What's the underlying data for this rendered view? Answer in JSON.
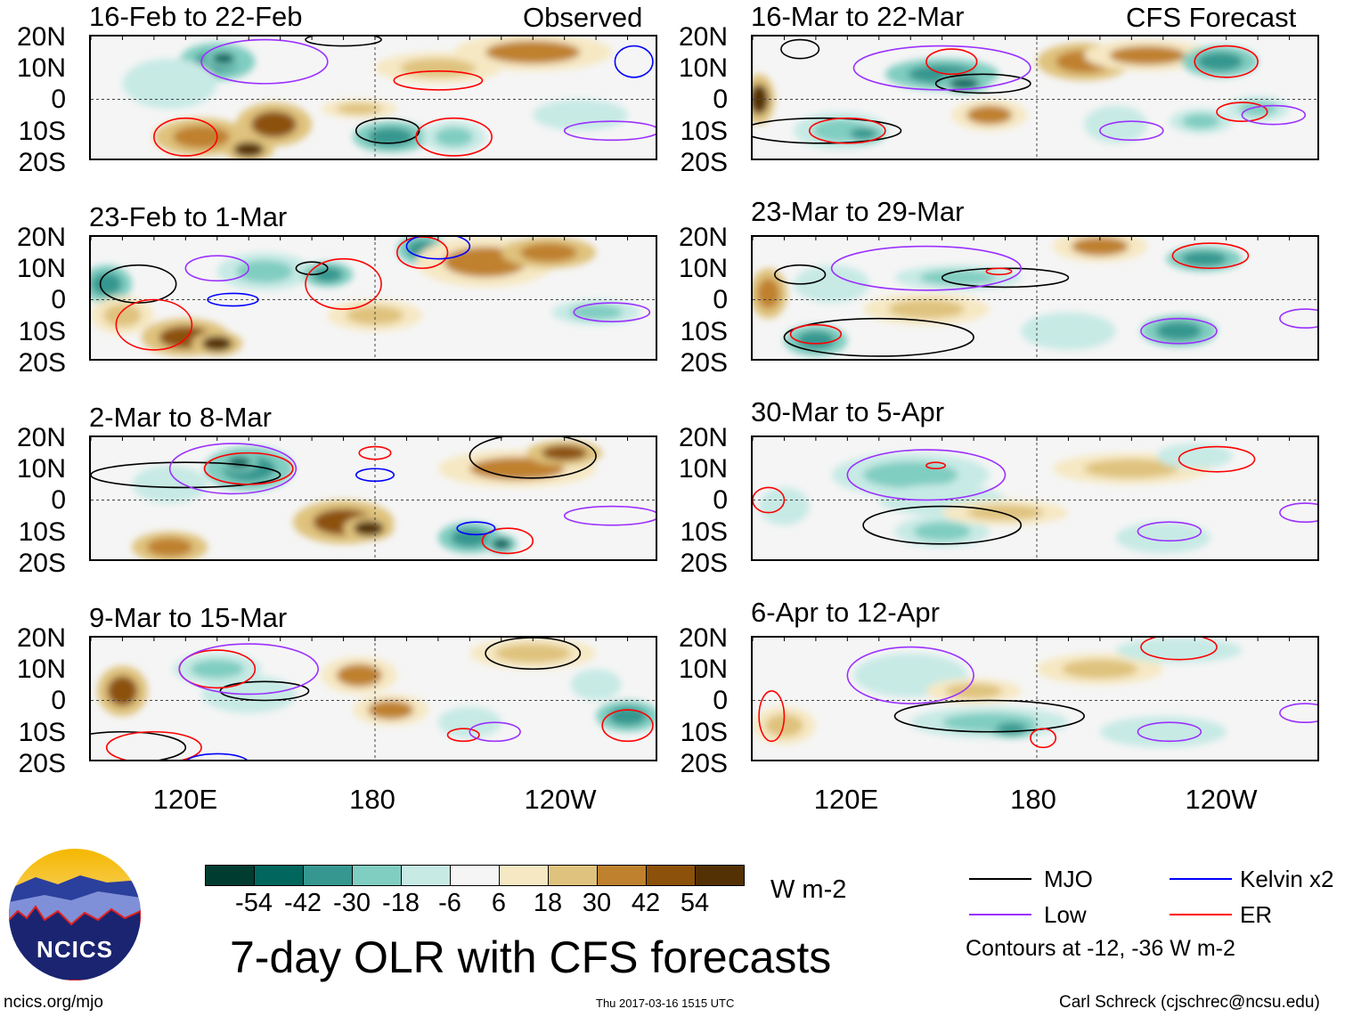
{
  "titles": {
    "observed": "Observed",
    "forecast": "CFS Forecast",
    "main": "7-day OLR with CFS forecasts"
  },
  "lat_labels": [
    "20N",
    "10N",
    "0",
    "10S",
    "20S"
  ],
  "lon_labels": [
    "120E",
    "180",
    "120W"
  ],
  "colorbar": {
    "colors": [
      "#003c30",
      "#01665e",
      "#35978f",
      "#80cdc1",
      "#c7eae5",
      "#f5f5f5",
      "#f6e8c3",
      "#dfc27d",
      "#bf812d",
      "#8c510a",
      "#543005"
    ],
    "labels": [
      "-54",
      "-42",
      "-30",
      "-18",
      "-6",
      "6",
      "18",
      "30",
      "42",
      "54"
    ],
    "units": "W m-2"
  },
  "legend": {
    "mjo": "MJO",
    "kelvin": "Kelvin x2",
    "low": "Low",
    "er": "ER",
    "contours_note": "Contours at -12, -36 W m-2",
    "colors": {
      "mjo": "#000000",
      "kelvin": "#0000ff",
      "low": "#9b30ff",
      "er": "#ff0000"
    }
  },
  "footer": {
    "url": "ncics.org/mjo",
    "timestamp": "Thu 2017-03-16 1515 UTC",
    "author": "Carl Schreck (cjschrec@ncsu.edu)"
  },
  "logo": {
    "text": "NCICS"
  },
  "chart_data": {
    "type": "map",
    "lon_range": [
      90,
      270
    ],
    "lat_range": [
      -20,
      20
    ],
    "panels": [
      {
        "title": "16-Feb to 22-Feb",
        "side": "observed",
        "anoms": [
          [
            130,
            12,
            12,
            6,
            -36
          ],
          [
            132,
            13,
            6,
            3,
            -54
          ],
          [
            115,
            5,
            15,
            8,
            -18
          ],
          [
            125,
            -12,
            15,
            6,
            36
          ],
          [
            148,
            -8,
            12,
            7,
            42
          ],
          [
            140,
            -16,
            8,
            4,
            54
          ],
          [
            185,
            -12,
            12,
            5,
            -42
          ],
          [
            205,
            -12,
            10,
            5,
            -30
          ],
          [
            200,
            10,
            20,
            5,
            24
          ],
          [
            230,
            15,
            25,
            6,
            30
          ],
          [
            175,
            -3,
            12,
            3,
            18
          ],
          [
            245,
            -5,
            15,
            5,
            -12
          ]
        ],
        "contours": [
          [
            "mjo",
            184,
            -10,
            10,
            4
          ],
          [
            "mjo",
            170,
            19,
            12,
            2
          ],
          [
            "er",
            200,
            6,
            14,
            3
          ],
          [
            "er",
            120,
            -12,
            10,
            6
          ],
          [
            "er",
            205,
            -12,
            12,
            6
          ],
          [
            "low",
            145,
            12,
            20,
            7
          ],
          [
            "low",
            255,
            -10,
            15,
            3
          ],
          [
            "kelvin",
            262,
            12,
            6,
            5
          ]
        ]
      },
      {
        "title": "23-Feb to 1-Mar",
        "side": "observed",
        "anoms": [
          [
            95,
            5,
            8,
            6,
            -42
          ],
          [
            145,
            9,
            15,
            6,
            -30
          ],
          [
            165,
            8,
            8,
            4,
            -42
          ],
          [
            120,
            -12,
            14,
            6,
            42
          ],
          [
            130,
            -14,
            8,
            4,
            54
          ],
          [
            100,
            -5,
            10,
            6,
            24
          ],
          [
            195,
            16,
            8,
            5,
            -42
          ],
          [
            215,
            12,
            22,
            8,
            30
          ],
          [
            235,
            15,
            15,
            5,
            36
          ],
          [
            250,
            -4,
            14,
            4,
            -30
          ],
          [
            180,
            -5,
            15,
            5,
            18
          ]
        ],
        "contours": [
          [
            "mjo",
            105,
            5,
            12,
            6
          ],
          [
            "mjo",
            160,
            10,
            5,
            2
          ],
          [
            "er",
            170,
            5,
            12,
            8
          ],
          [
            "er",
            195,
            15,
            8,
            5
          ],
          [
            "er",
            110,
            -8,
            12,
            8
          ],
          [
            "low",
            130,
            10,
            10,
            4
          ],
          [
            "low",
            255,
            -4,
            12,
            3
          ],
          [
            "kelvin",
            135,
            0,
            8,
            2
          ],
          [
            "kelvin",
            200,
            17,
            10,
            4
          ]
        ]
      },
      {
        "title": "2-Mar to 8-Mar",
        "side": "observed",
        "anoms": [
          [
            140,
            10,
            14,
            7,
            -42
          ],
          [
            137,
            12,
            6,
            3,
            -54
          ],
          [
            115,
            5,
            12,
            6,
            -18
          ],
          [
            170,
            -7,
            16,
            7,
            42
          ],
          [
            178,
            -9,
            8,
            4,
            54
          ],
          [
            115,
            -15,
            12,
            5,
            36
          ],
          [
            210,
            -12,
            10,
            5,
            -36
          ],
          [
            220,
            -14,
            5,
            3,
            -54
          ],
          [
            225,
            10,
            25,
            6,
            30
          ],
          [
            240,
            15,
            12,
            4,
            42
          ]
        ],
        "contours": [
          [
            "mjo",
            120,
            8,
            30,
            4
          ],
          [
            "mjo",
            230,
            14,
            20,
            7
          ],
          [
            "er",
            140,
            10,
            14,
            5
          ],
          [
            "er",
            222,
            -13,
            8,
            4
          ],
          [
            "er",
            180,
            15,
            5,
            2
          ],
          [
            "low",
            135,
            10,
            20,
            8
          ],
          [
            "low",
            255,
            -5,
            15,
            3
          ],
          [
            "kelvin",
            180,
            8,
            6,
            2
          ],
          [
            "kelvin",
            212,
            -9,
            6,
            2
          ]
        ]
      },
      {
        "title": "9-Mar to 15-Mar",
        "side": "observed",
        "anoms": [
          [
            130,
            10,
            14,
            5,
            -30
          ],
          [
            140,
            2,
            15,
            6,
            -18
          ],
          [
            100,
            3,
            8,
            8,
            42
          ],
          [
            175,
            8,
            12,
            6,
            30
          ],
          [
            185,
            -3,
            12,
            5,
            30
          ],
          [
            230,
            15,
            20,
            5,
            24
          ],
          [
            210,
            -7,
            10,
            5,
            -18
          ],
          [
            260,
            -5,
            10,
            5,
            -42
          ],
          [
            250,
            5,
            8,
            5,
            -18
          ]
        ],
        "contours": [
          [
            "mjo",
            145,
            3,
            14,
            3
          ],
          [
            "mjo",
            230,
            15,
            15,
            5
          ],
          [
            "mjo",
            100,
            -15,
            20,
            5
          ],
          [
            "er",
            130,
            10,
            12,
            6
          ],
          [
            "er",
            110,
            -15,
            15,
            5
          ],
          [
            "er",
            208,
            -11,
            5,
            2
          ],
          [
            "er",
            260,
            -8,
            8,
            5
          ],
          [
            "low",
            140,
            10,
            22,
            8
          ],
          [
            "low",
            218,
            -10,
            8,
            3
          ],
          [
            "kelvin",
            130,
            -20,
            10,
            3
          ]
        ]
      },
      {
        "title": "16-Mar to 22-Mar",
        "side": "forecast",
        "anoms": [
          [
            150,
            8,
            18,
            5,
            -42
          ],
          [
            157,
            5,
            8,
            3,
            -54
          ],
          [
            92,
            0,
            5,
            8,
            54
          ],
          [
            118,
            -10,
            15,
            6,
            -30
          ],
          [
            125,
            -11,
            7,
            3,
            -42
          ],
          [
            165,
            -5,
            12,
            5,
            30
          ],
          [
            195,
            12,
            15,
            6,
            36
          ],
          [
            215,
            14,
            20,
            5,
            30
          ],
          [
            238,
            12,
            12,
            5,
            -36
          ],
          [
            232,
            -7,
            10,
            4,
            -30
          ],
          [
            205,
            -8,
            10,
            6,
            -18
          ],
          [
            250,
            -3,
            10,
            4,
            -30
          ]
        ],
        "contours": [
          [
            "mjo",
            163,
            5,
            15,
            3
          ],
          [
            "mjo",
            112,
            -10,
            25,
            4
          ],
          [
            "mjo",
            105,
            16,
            6,
            3
          ],
          [
            "er",
            120,
            -10,
            12,
            4
          ],
          [
            "er",
            153,
            12,
            8,
            4
          ],
          [
            "er",
            240,
            12,
            10,
            5
          ],
          [
            "er",
            245,
            -4,
            8,
            3
          ],
          [
            "low",
            150,
            10,
            28,
            7
          ],
          [
            "low",
            210,
            -10,
            10,
            3
          ],
          [
            "low",
            255,
            -5,
            10,
            3
          ]
        ]
      },
      {
        "title": "23-Mar to 29-Mar",
        "side": "forecast",
        "anoms": [
          [
            155,
            7,
            20,
            4,
            -30
          ],
          [
            115,
            5,
            12,
            6,
            -18
          ],
          [
            95,
            2,
            6,
            8,
            36
          ],
          [
            110,
            -13,
            10,
            5,
            -36
          ],
          [
            145,
            -3,
            20,
            5,
            24
          ],
          [
            200,
            17,
            15,
            5,
            30
          ],
          [
            233,
            13,
            12,
            4,
            -42
          ],
          [
            225,
            -10,
            12,
            5,
            -36
          ],
          [
            190,
            -10,
            15,
            6,
            -18
          ]
        ],
        "contours": [
          [
            "mjo",
            170,
            7,
            20,
            3
          ],
          [
            "mjo",
            105,
            8,
            8,
            3
          ],
          [
            "mjo",
            130,
            -12,
            30,
            6
          ],
          [
            "er",
            110,
            -11,
            8,
            3
          ],
          [
            "er",
            168,
            9,
            4,
            1
          ],
          [
            "er",
            235,
            14,
            12,
            4
          ],
          [
            "low",
            145,
            10,
            30,
            7
          ],
          [
            "low",
            225,
            -10,
            12,
            4
          ],
          [
            "low",
            265,
            -6,
            8,
            3
          ]
        ]
      },
      {
        "title": "30-Mar to 5-Apr",
        "side": "forecast",
        "anoms": [
          [
            140,
            8,
            25,
            7,
            -30
          ],
          [
            150,
            0,
            20,
            5,
            -18
          ],
          [
            150,
            -10,
            15,
            5,
            -30
          ],
          [
            170,
            -4,
            20,
            4,
            18
          ],
          [
            210,
            10,
            25,
            5,
            24
          ],
          [
            230,
            14,
            12,
            4,
            -18
          ],
          [
            220,
            -12,
            15,
            5,
            -18
          ],
          [
            100,
            -2,
            8,
            6,
            -18
          ]
        ],
        "contours": [
          [
            "mjo",
            150,
            -8,
            25,
            6
          ],
          [
            "er",
            237,
            13,
            12,
            4
          ],
          [
            "er",
            95,
            0,
            5,
            4
          ],
          [
            "er",
            148,
            11,
            3,
            1
          ],
          [
            "low",
            145,
            8,
            25,
            8
          ],
          [
            "low",
            222,
            -10,
            10,
            3
          ],
          [
            "low",
            265,
            -4,
            8,
            3
          ]
        ]
      },
      {
        "title": "6-Apr to 12-Apr",
        "side": "forecast",
        "anoms": [
          [
            140,
            8,
            18,
            7,
            -18
          ],
          [
            165,
            -7,
            25,
            5,
            -30
          ],
          [
            172,
            -9,
            8,
            3,
            -42
          ],
          [
            160,
            3,
            15,
            4,
            24
          ],
          [
            200,
            10,
            20,
            5,
            18
          ],
          [
            225,
            16,
            20,
            4,
            -12
          ],
          [
            220,
            -10,
            20,
            5,
            -18
          ],
          [
            100,
            -8,
            10,
            6,
            18
          ]
        ],
        "contours": [
          [
            "mjo",
            165,
            -5,
            30,
            5
          ],
          [
            "er",
            225,
            17,
            12,
            4
          ],
          [
            "er",
            96,
            -5,
            4,
            8
          ],
          [
            "er",
            182,
            -12,
            4,
            3
          ],
          [
            "low",
            140,
            8,
            20,
            9
          ],
          [
            "low",
            222,
            -10,
            10,
            3
          ],
          [
            "low",
            265,
            -4,
            8,
            3
          ]
        ]
      }
    ]
  }
}
